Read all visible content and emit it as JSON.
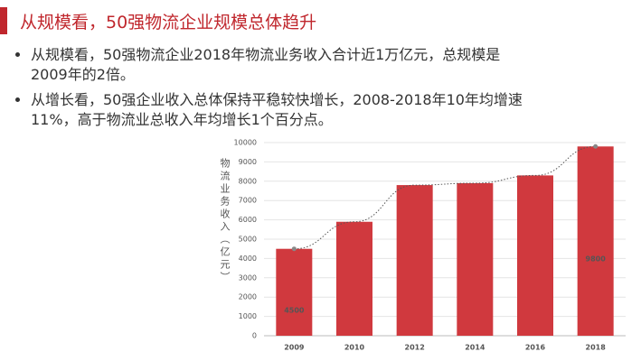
{
  "title": "从规模看，50强物流企业规模总体趋升",
  "bullets": [
    "从规模看，50强物流企业2018年物流业务收入合计近1万亿元，总规模是2009年的2倍。",
    "从增长看，50强企业收入总体保持平稳较快增长，2008-2018年10年均增速11%，高于物流业总收入年均增长1个百分点。"
  ],
  "chart_data": {
    "type": "bar",
    "y_label": "物流业务收入（亿元）",
    "categories": [
      "2009",
      "2010",
      "2012",
      "2014",
      "2016",
      "2018"
    ],
    "values": [
      4500,
      5900,
      7800,
      7900,
      8300,
      9800
    ],
    "value_labels": [
      "4500",
      null,
      null,
      null,
      null,
      "9800"
    ],
    "color": "#d0393e",
    "ylim": [
      0,
      10000
    ],
    "yticks": [
      0,
      1000,
      2000,
      3000,
      4000,
      5000,
      6000,
      7000,
      8000,
      9000,
      10000
    ],
    "grid": true
  }
}
